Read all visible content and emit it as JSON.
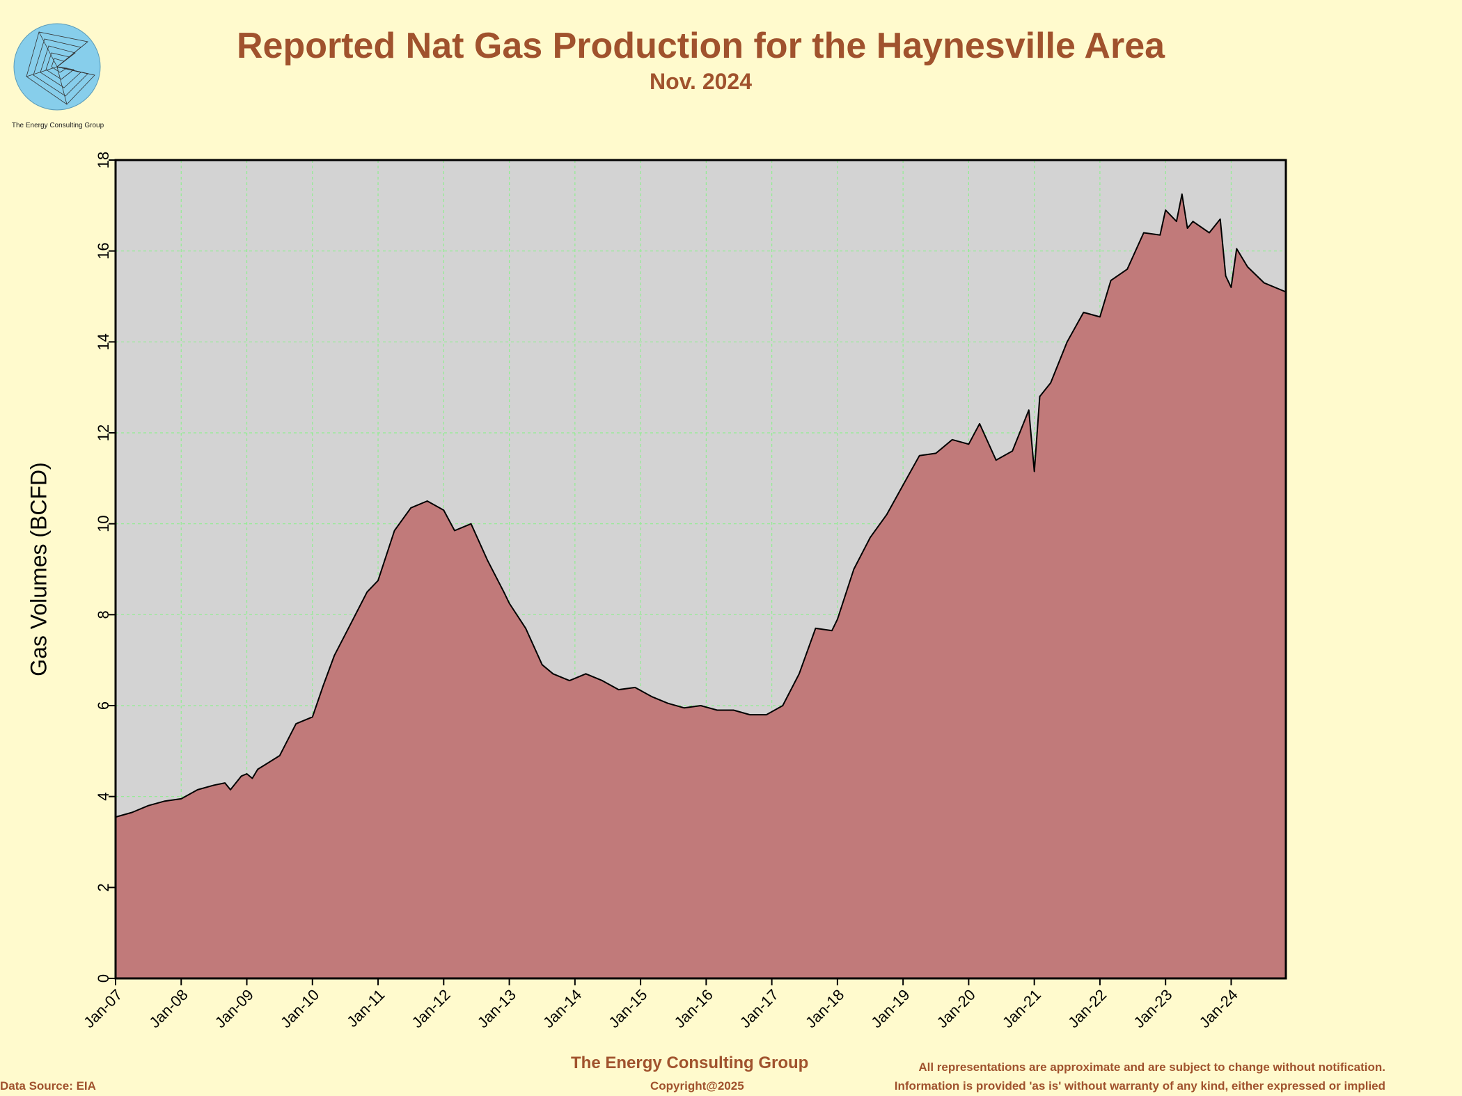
{
  "header": {
    "title": "Reported Nat Gas Production for the Haynesville Area",
    "subtitle": "Nov. 2024"
  },
  "logo": {
    "caption": "The Energy Consulting Group",
    "icon": "spiral-logo-icon"
  },
  "footer": {
    "company": "The Energy Consulting Group",
    "copyright": "Copyright@2025",
    "source": "Data Source: EIA",
    "disclaimer_line1": "All representations are approximate and are subject to change without notification.",
    "disclaimer_line2": "Information is provided 'as is' without warranty of any kind, either expressed or implied"
  },
  "colors": {
    "background": "#fffacd",
    "plot_background": "#d3d3d3",
    "area_fill": "#c17a7a",
    "area_line": "#000000",
    "grid": "#90ee90",
    "title": "#a0522d"
  },
  "chart_data": {
    "type": "area",
    "title": "Reported Nat Gas Production for the Haynesville Area",
    "subtitle": "Nov. 2024",
    "xlabel": "",
    "ylabel": "Gas Volumes (BCFD)",
    "ylim": [
      0,
      18
    ],
    "yticks": [
      0,
      2,
      4,
      6,
      8,
      10,
      12,
      14,
      16,
      18
    ],
    "xlim": [
      "2007-01",
      "2024-11"
    ],
    "xtick_labels": [
      "Jan-07",
      "Jan-08",
      "Jan-09",
      "Jan-10",
      "Jan-11",
      "Jan-12",
      "Jan-13",
      "Jan-14",
      "Jan-15",
      "Jan-16",
      "Jan-17",
      "Jan-18",
      "Jan-19",
      "Jan-20",
      "Jan-21",
      "Jan-22",
      "Jan-23",
      "Jan-24"
    ],
    "grid": true,
    "legend": "none",
    "series": [
      {
        "x": [
          "2007-01",
          "2007-04",
          "2007-07",
          "2007-10",
          "2008-01",
          "2008-04",
          "2008-07",
          "2008-09",
          "2008-10",
          "2008-12",
          "2009-01",
          "2009-02",
          "2009-03",
          "2009-07",
          "2009-10",
          "2010-01",
          "2010-03",
          "2010-05",
          "2010-08",
          "2010-11",
          "2011-01",
          "2011-04",
          "2011-07",
          "2011-10",
          "2012-01",
          "2012-03",
          "2012-06",
          "2012-09",
          "2012-12",
          "2013-01",
          "2013-04",
          "2013-07",
          "2013-09",
          "2013-12",
          "2014-03",
          "2014-06",
          "2014-09",
          "2014-12",
          "2015-03",
          "2015-06",
          "2015-09",
          "2015-12",
          "2016-03",
          "2016-06",
          "2016-09",
          "2016-12",
          "2017-03",
          "2017-06",
          "2017-09",
          "2017-12",
          "2018-01",
          "2018-04",
          "2018-07",
          "2018-10",
          "2019-01",
          "2019-04",
          "2019-07",
          "2019-10",
          "2020-01",
          "2020-03",
          "2020-06",
          "2020-09",
          "2020-12",
          "2021-01",
          "2021-02",
          "2021-04",
          "2021-07",
          "2021-10",
          "2022-01",
          "2022-03",
          "2022-06",
          "2022-09",
          "2022-12",
          "2023-01",
          "2023-03",
          "2023-04",
          "2023-05",
          "2023-06",
          "2023-09",
          "2023-11",
          "2023-12",
          "2024-01",
          "2024-02",
          "2024-04",
          "2024-07",
          "2024-11"
        ],
        "values": [
          3.55,
          3.65,
          3.8,
          3.9,
          3.95,
          4.15,
          4.25,
          4.3,
          4.15,
          4.45,
          4.5,
          4.4,
          4.6,
          4.9,
          5.6,
          5.75,
          6.45,
          7.1,
          7.8,
          8.5,
          8.75,
          9.85,
          10.35,
          10.5,
          10.3,
          9.85,
          10.0,
          9.2,
          8.5,
          8.25,
          7.7,
          6.9,
          6.7,
          6.55,
          6.7,
          6.55,
          6.35,
          6.4,
          6.2,
          6.05,
          5.95,
          6.0,
          5.9,
          5.9,
          5.8,
          5.8,
          6.0,
          6.7,
          7.7,
          7.65,
          7.9,
          9.0,
          9.7,
          10.2,
          10.85,
          11.5,
          11.55,
          11.85,
          11.75,
          12.2,
          11.4,
          11.6,
          12.5,
          11.15,
          12.8,
          13.1,
          14.0,
          14.65,
          14.55,
          15.35,
          15.6,
          16.4,
          16.35,
          16.9,
          16.65,
          17.25,
          16.5,
          16.65,
          16.4,
          16.7,
          15.45,
          15.2,
          16.05,
          15.65,
          15.3,
          15.1
        ]
      }
    ]
  }
}
